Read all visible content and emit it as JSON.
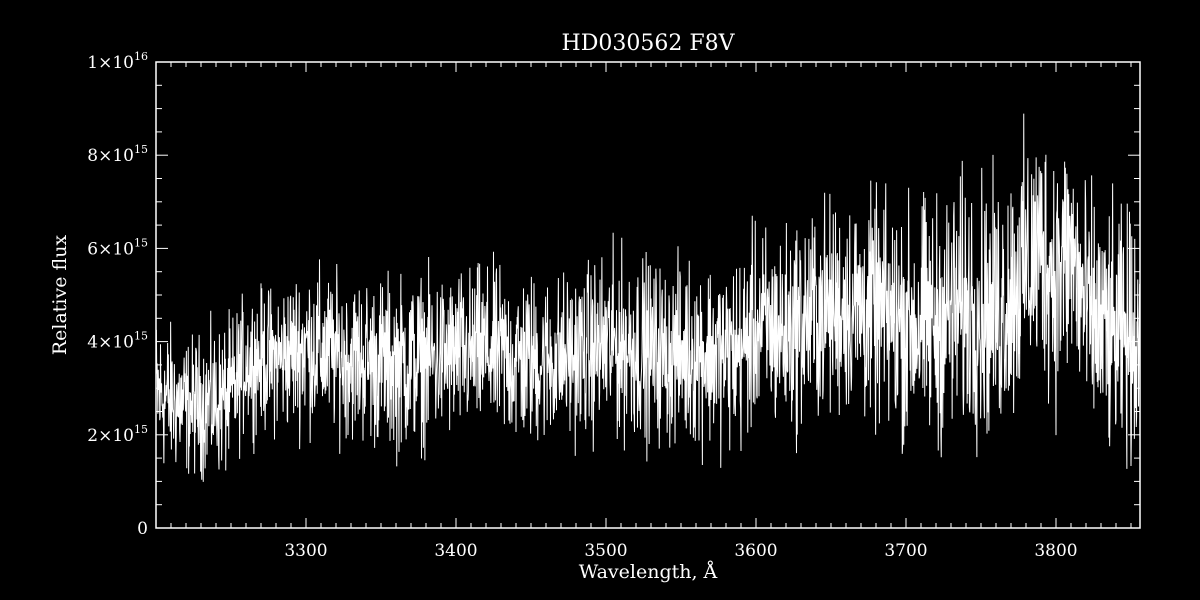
{
  "chart_data": {
    "type": "line",
    "title": "HD030562  F8V",
    "xlabel": "Wavelength, Å",
    "ylabel": "Relative flux",
    "xlim": [
      3200,
      3856
    ],
    "ylim": [
      0,
      1e+16
    ],
    "grid": false,
    "x_ticks": [
      {
        "value": 3300,
        "label": "3300"
      },
      {
        "value": 3400,
        "label": "3400"
      },
      {
        "value": 3500,
        "label": "3500"
      },
      {
        "value": 3600,
        "label": "3600"
      },
      {
        "value": 3700,
        "label": "3700"
      },
      {
        "value": 3800,
        "label": "3800"
      }
    ],
    "y_ticks": [
      {
        "value": 0,
        "mantissa": "0",
        "exponent": ""
      },
      {
        "value": 2000000000000000.0,
        "mantissa": "2×10",
        "exponent": "15"
      },
      {
        "value": 4000000000000000.0,
        "mantissa": "4×10",
        "exponent": "15"
      },
      {
        "value": 6000000000000000.0,
        "mantissa": "6×10",
        "exponent": "15"
      },
      {
        "value": 8000000000000000.0,
        "mantissa": "8×10",
        "exponent": "15"
      },
      {
        "value": 1e+16,
        "mantissa": "1×10",
        "exponent": "16"
      }
    ],
    "series": [
      {
        "x": [
          3200,
          3220,
          3240,
          3250,
          3260,
          3280,
          3300,
          3320,
          3340,
          3360,
          3380,
          3400,
          3420,
          3440,
          3460,
          3480,
          3500,
          3520,
          3540,
          3560,
          3580,
          3590,
          3600,
          3620,
          3640,
          3660,
          3680,
          3700,
          3720,
          3740,
          3760,
          3780,
          3790,
          3800,
          3810,
          3820,
          3840,
          3856
        ],
        "y": [
          2900000000000000.0,
          2600000000000000.0,
          2700000000000000.0,
          2800000000000000.0,
          3600000000000000.0,
          3600000000000000.0,
          3900000000000000.0,
          3700000000000000.0,
          3600000000000000.0,
          3500000000000000.0,
          3600000000000000.0,
          3700000000000000.0,
          3800000000000000.0,
          3600000000000000.0,
          3600000000000000.0,
          3700000000000000.0,
          3900000000000000.0,
          3900000000000000.0,
          3700000000000000.0,
          3800000000000000.0,
          3700000000000000.0,
          3800000000000000.0,
          4300000000000000.0,
          4200000000000000.0,
          4600000000000000.0,
          4800000000000000.0,
          4600000000000000.0,
          4400000000000000.0,
          4400000000000000.0,
          4800000000000000.0,
          4600000000000000.0,
          5600000000000000.0,
          6000000000000000.0,
          5400000000000000.0,
          5900000000000000.0,
          4600000000000000.0,
          4000000000000000.0,
          4200000000000000.0
        ],
        "noise_amplitude": [
          1500000000000000.0,
          1300000000000000.0,
          1400000000000000.0,
          1500000000000000.0,
          1300000000000000.0,
          1400000000000000.0,
          1600000000000000.0,
          1500000000000000.0,
          1600000000000000.0,
          1700000000000000.0,
          1600000000000000.0,
          1600000000000000.0,
          1600000000000000.0,
          1700000000000000.0,
          1600000000000000.0,
          1600000000000000.0,
          1800000000000000.0,
          1800000000000000.0,
          1700000000000000.0,
          1800000000000000.0,
          1800000000000000.0,
          1900000000000000.0,
          1900000000000000.0,
          2000000000000000.0,
          2100000000000000.0,
          2100000000000000.0,
          2200000000000000.0,
          2300000000000000.0,
          2400000000000000.0,
          2500000000000000.0,
          2500000000000000.0,
          2500000000000000.0,
          2500000000000000.0,
          2600000000000000.0,
          2500000000000000.0,
          2400000000000000.0,
          2400000000000000.0,
          2400000000000000.0
        ]
      }
    ]
  }
}
